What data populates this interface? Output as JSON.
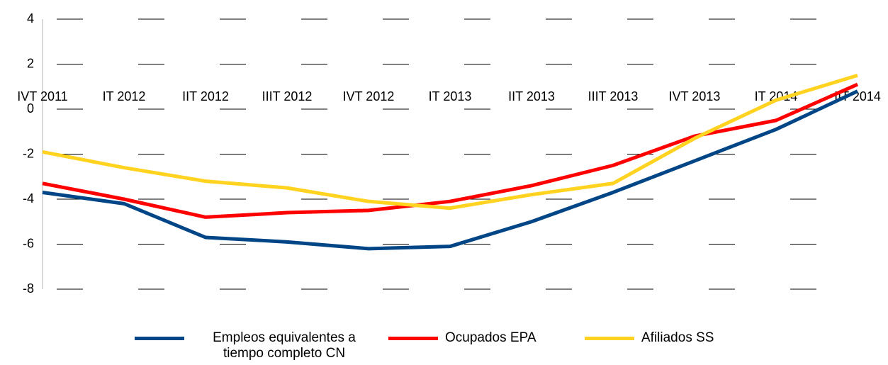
{
  "chart_data": {
    "type": "line",
    "categories": [
      "IVT 2011",
      "IT 2012",
      "IIT 2012",
      "IIIT 2012",
      "IVT 2012",
      "IT 2013",
      "IIT 2013",
      "IIIT 2013",
      "IVT 2013",
      "IT 2014",
      "IIT 2014"
    ],
    "series": [
      {
        "name": "Empleos equivalentes a tiempo completo CN",
        "color": "#004586",
        "values": [
          -3.7,
          -4.2,
          -5.7,
          -5.9,
          -6.2,
          -6.1,
          -5.0,
          -3.7,
          -2.3,
          -0.9,
          0.8
        ]
      },
      {
        "name": "Ocupados EPA",
        "color": "#ff0000",
        "values": [
          -3.3,
          -4.0,
          -4.8,
          -4.6,
          -4.5,
          -4.1,
          -3.4,
          -2.5,
          -1.2,
          -0.5,
          1.1
        ]
      },
      {
        "name": "Afiliados SS",
        "color": "#ffd320",
        "values": [
          -1.9,
          -2.6,
          -3.2,
          -3.5,
          -4.1,
          -4.4,
          -3.8,
          -3.3,
          -1.3,
          0.4,
          1.5
        ]
      }
    ],
    "ylim": [
      -8,
      4
    ],
    "yticks": [
      -8,
      -6,
      -4,
      -2,
      0,
      2,
      4
    ],
    "grid": true,
    "legend": "bottom"
  }
}
